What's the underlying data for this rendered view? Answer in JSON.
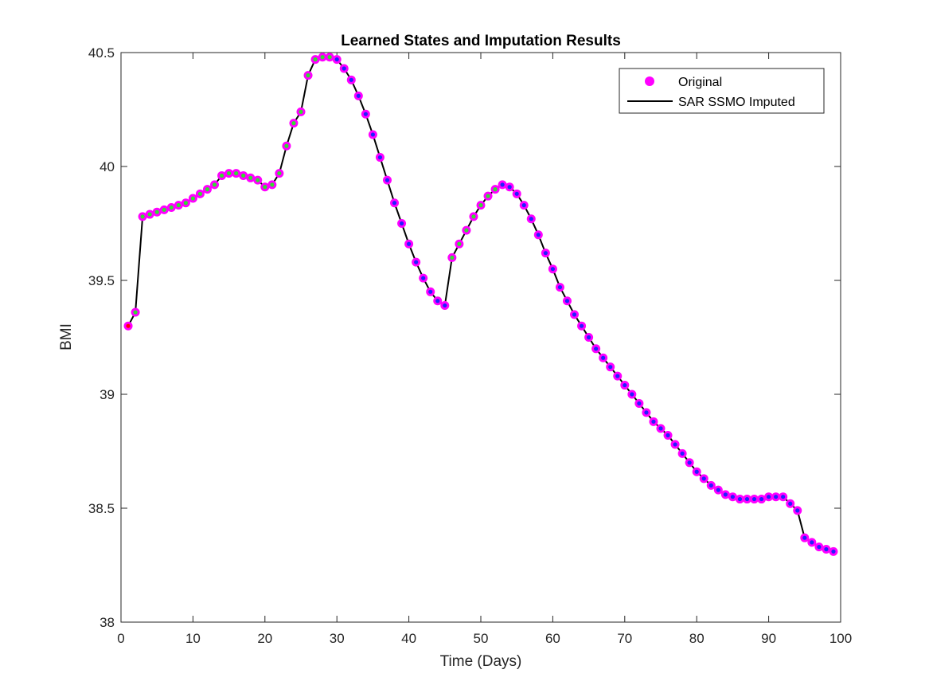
{
  "chart_data": {
    "type": "line",
    "title": "Learned States and Imputation Results",
    "xlabel": "Time (Days)",
    "ylabel": "BMI",
    "xlim": [
      0,
      100
    ],
    "ylim": [
      38,
      40.5
    ],
    "xticks": [
      "0",
      "10",
      "20",
      "30",
      "40",
      "50",
      "60",
      "70",
      "80",
      "90",
      "100"
    ],
    "yticks": [
      "38",
      "38.5",
      "39",
      "39.5",
      "40",
      "40.5"
    ],
    "grid": false,
    "legend_position": "top-right",
    "legend": [
      {
        "label": "Original",
        "marker": "circle",
        "color": "#ff00ff"
      },
      {
        "label": "SAR SSMO Imputed",
        "marker": "line",
        "color": "#000000"
      }
    ],
    "x": [
      1,
      2,
      3,
      4,
      5,
      6,
      7,
      8,
      9,
      10,
      11,
      12,
      13,
      14,
      15,
      16,
      17,
      18,
      19,
      20,
      21,
      22,
      23,
      24,
      25,
      26,
      27,
      28,
      29,
      30,
      31,
      32,
      33,
      34,
      35,
      36,
      37,
      38,
      39,
      40,
      41,
      42,
      43,
      44,
      45,
      46,
      47,
      48,
      49,
      50,
      51,
      52,
      53,
      54,
      55,
      56,
      57,
      58,
      59,
      60,
      61,
      62,
      63,
      64,
      65,
      66,
      67,
      68,
      69,
      70,
      71,
      72,
      73,
      74,
      75,
      76,
      77,
      78,
      79,
      80,
      81,
      82,
      83,
      84,
      85,
      86,
      87,
      88,
      89,
      90,
      91,
      92,
      93,
      94,
      95,
      96,
      97,
      98,
      99
    ],
    "series": [
      {
        "name": "Original",
        "style": "markers",
        "color": "#ff00ff",
        "values": [
          39.3,
          39.36,
          39.78,
          39.79,
          39.8,
          39.81,
          39.82,
          39.83,
          39.84,
          39.86,
          39.88,
          39.9,
          39.92,
          39.96,
          39.97,
          39.97,
          39.96,
          39.95,
          39.94,
          39.91,
          39.92,
          39.97,
          40.09,
          40.19,
          40.24,
          40.4,
          40.47,
          40.48,
          40.48,
          40.47,
          40.43,
          40.38,
          40.31,
          40.23,
          40.14,
          40.04,
          39.94,
          39.84,
          39.75,
          39.66,
          39.58,
          39.51,
          39.45,
          39.41,
          39.39,
          39.6,
          39.66,
          39.72,
          39.78,
          39.83,
          39.87,
          39.9,
          39.92,
          39.91,
          39.88,
          39.83,
          39.77,
          39.7,
          39.62,
          39.55,
          39.47,
          39.41,
          39.35,
          39.3,
          39.25,
          39.2,
          39.16,
          39.12,
          39.08,
          39.04,
          39.0,
          38.96,
          38.92,
          38.88,
          38.85,
          38.82,
          38.78,
          38.74,
          38.7,
          38.66,
          38.63,
          38.6,
          38.58,
          38.56,
          38.55,
          38.54,
          38.54,
          38.54,
          38.54,
          38.55,
          38.55,
          38.55,
          38.52,
          38.49,
          38.37,
          38.35,
          38.33,
          38.32,
          38.31
        ]
      },
      {
        "name": "SAR SSMO Imputed",
        "style": "line",
        "color": "#000000",
        "values": [
          39.3,
          39.36,
          39.78,
          39.79,
          39.8,
          39.81,
          39.82,
          39.83,
          39.84,
          39.86,
          39.88,
          39.9,
          39.92,
          39.96,
          39.97,
          39.97,
          39.96,
          39.95,
          39.94,
          39.91,
          39.92,
          39.97,
          40.09,
          40.19,
          40.24,
          40.4,
          40.47,
          40.48,
          40.48,
          40.47,
          40.43,
          40.38,
          40.31,
          40.23,
          40.14,
          40.04,
          39.94,
          39.84,
          39.75,
          39.66,
          39.58,
          39.51,
          39.45,
          39.41,
          39.39,
          39.6,
          39.66,
          39.72,
          39.78,
          39.83,
          39.87,
          39.9,
          39.92,
          39.91,
          39.88,
          39.83,
          39.77,
          39.7,
          39.62,
          39.55,
          39.47,
          39.41,
          39.35,
          39.3,
          39.25,
          39.2,
          39.16,
          39.12,
          39.08,
          39.04,
          39.0,
          38.96,
          38.92,
          38.88,
          38.85,
          38.82,
          38.78,
          38.74,
          38.7,
          38.66,
          38.63,
          38.6,
          38.58,
          38.56,
          38.55,
          38.54,
          38.54,
          38.54,
          38.54,
          38.55,
          38.55,
          38.55,
          38.52,
          38.49,
          38.37,
          38.35,
          38.33,
          38.32,
          38.31
        ]
      }
    ],
    "inner_point_colors": [
      {
        "days": [
          1
        ],
        "color": "#ff0000"
      },
      {
        "days": [
          2,
          3,
          4,
          5,
          6,
          7,
          8,
          9,
          10,
          11,
          12,
          13,
          14,
          15,
          16,
          17,
          18,
          19,
          20,
          21,
          22,
          23,
          24,
          25,
          26,
          27,
          28,
          29,
          46,
          47,
          48,
          49,
          50,
          51,
          52
        ],
        "color": "#33dd33"
      },
      {
        "days": [
          30,
          31,
          32,
          33,
          34,
          35,
          36,
          37,
          38,
          39,
          40,
          41,
          42,
          43,
          44,
          45,
          53,
          54,
          55,
          56,
          57,
          58,
          59,
          60,
          61,
          62,
          63,
          64,
          65,
          66,
          67,
          68,
          69,
          70,
          71,
          72,
          73,
          74,
          75,
          76,
          77,
          78,
          79,
          80,
          81,
          82,
          83,
          84,
          85,
          86,
          87,
          88,
          89,
          90,
          91,
          92,
          93,
          94,
          95,
          96,
          97,
          98,
          99
        ],
        "color": "#2020ff"
      }
    ]
  }
}
